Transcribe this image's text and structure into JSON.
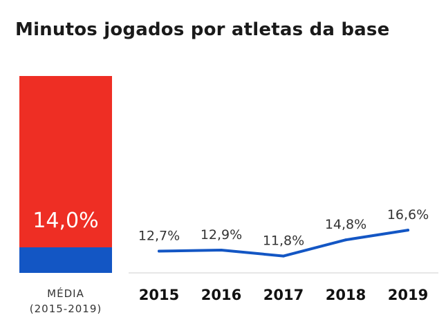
{
  "title": "Minutos jogados por atletas da base",
  "colors": {
    "red": "#ee2e24",
    "blue": "#1356c4",
    "axis": "#cccccc"
  },
  "chart_data": [
    {
      "type": "bar",
      "title": "Minutos jogados por atletas da base",
      "categories": [
        "MÉDIA (2015-2019)"
      ],
      "values": [
        14.0
      ],
      "value_label": "14,0%",
      "category_label_lines": [
        "MÉDIA",
        "(2015-2019)"
      ]
    },
    {
      "type": "line",
      "x": [
        "2015",
        "2016",
        "2017",
        "2018",
        "2019"
      ],
      "values": [
        12.7,
        12.9,
        11.8,
        14.8,
        16.6
      ],
      "labels": [
        "12,7%",
        "12,9%",
        "11,8%",
        "14,8%",
        "16,6%"
      ],
      "ylim": [
        0,
        100
      ]
    }
  ]
}
